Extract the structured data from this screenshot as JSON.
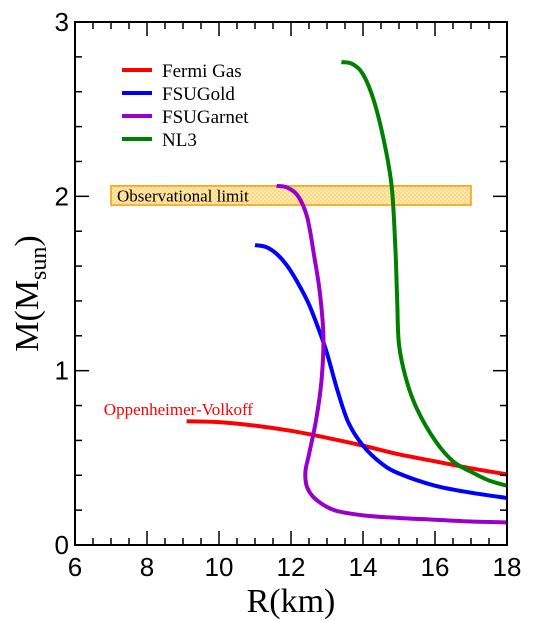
{
  "chart_data": {
    "type": "line",
    "xlabel": "R(km)",
    "ylabel": "M(M",
    "ylabel_sub": "sun",
    "ylabel_close": ")",
    "xlim": [
      6,
      18
    ],
    "ylim": [
      0,
      3
    ],
    "x_ticks": [
      6,
      8,
      10,
      12,
      14,
      16,
      18
    ],
    "y_ticks": [
      0,
      1,
      2,
      3
    ],
    "x_minor_step": 0.5,
    "y_minor_step": 0.2,
    "grid": false,
    "legend_position": "top-left",
    "series": [
      {
        "name": "Fermi Gas",
        "color": "#ff0000",
        "points": [
          [
            9.1,
            0.71
          ],
          [
            10.0,
            0.705
          ],
          [
            11.0,
            0.685
          ],
          [
            12.0,
            0.655
          ],
          [
            13.0,
            0.615
          ],
          [
            14.0,
            0.57
          ],
          [
            15.0,
            0.52
          ],
          [
            16.0,
            0.48
          ],
          [
            17.0,
            0.44
          ],
          [
            18.0,
            0.405
          ]
        ]
      },
      {
        "name": "FSUGold",
        "color": "#0000ff",
        "points": [
          [
            11.0,
            1.72
          ],
          [
            11.3,
            1.71
          ],
          [
            11.6,
            1.67
          ],
          [
            11.9,
            1.6
          ],
          [
            12.2,
            1.5
          ],
          [
            12.5,
            1.38
          ],
          [
            12.8,
            1.22
          ],
          [
            13.0,
            1.1
          ],
          [
            13.3,
            0.88
          ],
          [
            13.6,
            0.7
          ],
          [
            14.0,
            0.57
          ],
          [
            14.5,
            0.47
          ],
          [
            15.0,
            0.41
          ],
          [
            16.0,
            0.34
          ],
          [
            17.0,
            0.3
          ],
          [
            18.0,
            0.27
          ]
        ]
      },
      {
        "name": "FSUGarnet",
        "color": "#9900cc",
        "points": [
          [
            11.6,
            2.06
          ],
          [
            11.9,
            2.05
          ],
          [
            12.2,
            2.0
          ],
          [
            12.45,
            1.88
          ],
          [
            12.65,
            1.65
          ],
          [
            12.8,
            1.45
          ],
          [
            12.9,
            1.2
          ],
          [
            12.85,
            0.95
          ],
          [
            12.7,
            0.72
          ],
          [
            12.5,
            0.52
          ],
          [
            12.4,
            0.42
          ],
          [
            12.45,
            0.33
          ],
          [
            12.7,
            0.26
          ],
          [
            13.2,
            0.2
          ],
          [
            14.0,
            0.17
          ],
          [
            15.0,
            0.155
          ],
          [
            16.0,
            0.145
          ],
          [
            17.0,
            0.135
          ],
          [
            18.0,
            0.13
          ]
        ]
      },
      {
        "name": "NL3",
        "color": "#008000",
        "points": [
          [
            13.4,
            2.77
          ],
          [
            13.7,
            2.76
          ],
          [
            14.0,
            2.7
          ],
          [
            14.3,
            2.55
          ],
          [
            14.6,
            2.3
          ],
          [
            14.8,
            2.05
          ],
          [
            14.9,
            1.7
          ],
          [
            14.95,
            1.4
          ],
          [
            15.0,
            1.15
          ],
          [
            15.2,
            0.95
          ],
          [
            15.5,
            0.78
          ],
          [
            16.0,
            0.6
          ],
          [
            16.5,
            0.48
          ],
          [
            17.0,
            0.42
          ],
          [
            17.5,
            0.37
          ],
          [
            18.0,
            0.34
          ]
        ]
      }
    ],
    "bands": [
      {
        "label": "Observational limit",
        "x": [
          7.0,
          17.0
        ],
        "y": [
          1.95,
          2.06
        ],
        "fill": "#ffe9a8",
        "stroke": "#ff9900"
      }
    ],
    "annotations": [
      {
        "text": "Oppenheimer-Volkoff",
        "x": 6.8,
        "y": 0.78,
        "color": "#ff0000"
      }
    ]
  }
}
